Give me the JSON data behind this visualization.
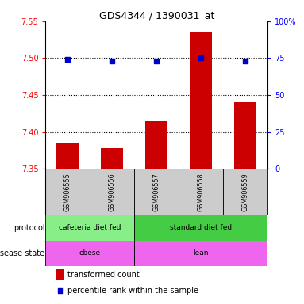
{
  "title": "GDS4344 / 1390031_at",
  "samples": [
    "GSM906555",
    "GSM906556",
    "GSM906557",
    "GSM906558",
    "GSM906559"
  ],
  "bar_values": [
    7.385,
    7.378,
    7.415,
    7.535,
    7.44
  ],
  "dot_values": [
    74,
    73,
    73,
    75,
    73
  ],
  "ylim_left": [
    7.35,
    7.55
  ],
  "ylim_right": [
    0,
    100
  ],
  "yticks_left": [
    7.35,
    7.4,
    7.45,
    7.5,
    7.55
  ],
  "yticks_right": [
    0,
    25,
    50,
    75,
    100
  ],
  "ytick_labels_right": [
    "0",
    "25",
    "50",
    "75",
    "100%"
  ],
  "grid_lines": [
    7.4,
    7.45,
    7.5
  ],
  "bar_color": "#cc0000",
  "dot_color": "#0000cc",
  "bar_width": 0.5,
  "protocol_label1": "cafeteria diet fed",
  "protocol_label2": "standard diet fed",
  "protocol_color1": "#88ee88",
  "protocol_color2": "#44cc44",
  "disease_label1": "obese",
  "disease_label2": "lean",
  "disease_color": "#ee66ee",
  "sample_bg_color": "#cccccc",
  "legend_red_label": "transformed count",
  "legend_blue_label": "percentile rank within the sample",
  "protocol_row_label": "protocol",
  "disease_row_label": "disease state",
  "arrow_color": "#999999",
  "fig_width": 3.83,
  "fig_height": 3.84,
  "dpi": 100
}
